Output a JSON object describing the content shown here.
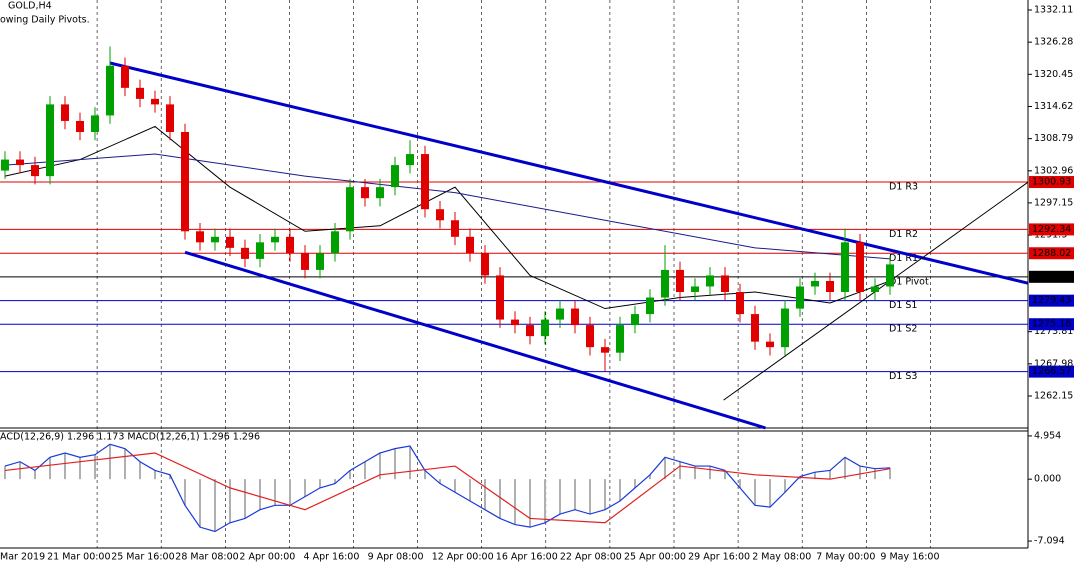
{
  "chart_data": {
    "type": "candlestick",
    "title": "GOLD,H4",
    "subtitle": "owing Daily Pivots.",
    "categories": [
      "Mar 2019",
      "21 Mar 00:00",
      "25 Mar 16:00",
      "28 Mar 08:00",
      "2 Apr 00:00",
      "4 Apr 16:00",
      "9 Apr 08:00",
      "12 Apr 00:00",
      "16 Apr 16:00",
      "22 Apr 08:00",
      "25 Apr 00:00",
      "29 Apr 16:00",
      "2 May 08:00",
      "7 May 00:00",
      "9 May 16:00"
    ],
    "ylim": [
      1256.35,
      1333.92
    ],
    "yticks": [
      1332.11,
      1326.28,
      1320.45,
      1314.62,
      1308.79,
      1302.96,
      1297.15,
      1291.3,
      1273.81,
      1267.98,
      1262.15
    ],
    "up_color": "#00a000",
    "down_color": "#e00000",
    "ohlc": [
      [
        1303,
        1306.5,
        1301.5,
        1305
      ],
      [
        1305,
        1306.5,
        1302.5,
        1304
      ],
      [
        1304,
        1305.5,
        1300.5,
        1302
      ],
      [
        1302,
        1316.5,
        1300.5,
        1315
      ],
      [
        1315,
        1316.5,
        1310.5,
        1312
      ],
      [
        1312,
        1313.5,
        1308.5,
        1310
      ],
      [
        1310,
        1314.5,
        1308.5,
        1313
      ],
      [
        1313,
        1325.5,
        1311.5,
        1322
      ],
      [
        1322,
        1323.5,
        1316.5,
        1318
      ],
      [
        1318,
        1319.5,
        1314.5,
        1316
      ],
      [
        1316,
        1317.5,
        1313.5,
        1315
      ],
      [
        1315,
        1316.5,
        1308.5,
        1310
      ],
      [
        1310,
        1311.5,
        1290.5,
        1292
      ],
      [
        1292,
        1293.5,
        1288.5,
        1290
      ],
      [
        1290,
        1292.5,
        1288.5,
        1291
      ],
      [
        1291,
        1292.5,
        1287.5,
        1289
      ],
      [
        1289,
        1290.5,
        1285.5,
        1287
      ],
      [
        1287,
        1291.5,
        1285.5,
        1290
      ],
      [
        1290,
        1292.5,
        1288.5,
        1291
      ],
      [
        1291,
        1292.5,
        1286.5,
        1288
      ],
      [
        1288,
        1289.5,
        1283.5,
        1285
      ],
      [
        1285,
        1289.5,
        1283.5,
        1288
      ],
      [
        1288,
        1293.5,
        1286.5,
        1292
      ],
      [
        1292,
        1301.5,
        1290.5,
        1300
      ],
      [
        1300,
        1301.5,
        1296.5,
        1298
      ],
      [
        1298,
        1301.5,
        1296.5,
        1300
      ],
      [
        1300,
        1305.5,
        1298.5,
        1304
      ],
      [
        1304,
        1308.5,
        1302.5,
        1306
      ],
      [
        1306,
        1307.5,
        1294.5,
        1296
      ],
      [
        1296,
        1297.5,
        1292.5,
        1294
      ],
      [
        1294,
        1295.5,
        1289.5,
        1291
      ],
      [
        1291,
        1292.5,
        1286.5,
        1288
      ],
      [
        1288,
        1289.5,
        1282.5,
        1284
      ],
      [
        1284,
        1285.5,
        1274.5,
        1276
      ],
      [
        1276,
        1277.5,
        1273.5,
        1275
      ],
      [
        1275,
        1276.5,
        1271.5,
        1273
      ],
      [
        1273,
        1277.5,
        1271.5,
        1276
      ],
      [
        1276,
        1279.5,
        1274.5,
        1278
      ],
      [
        1278,
        1279.5,
        1273.5,
        1275
      ],
      [
        1275,
        1276.5,
        1269.5,
        1271
      ],
      [
        1271,
        1272.5,
        1266.5,
        1270
      ],
      [
        1270,
        1276.5,
        1268.5,
        1275
      ],
      [
        1275,
        1278.5,
        1273.5,
        1277
      ],
      [
        1277,
        1281.5,
        1275.5,
        1280
      ],
      [
        1280,
        1289.5,
        1278.5,
        1285
      ],
      [
        1285,
        1286.5,
        1279.5,
        1281
      ],
      [
        1281,
        1283.5,
        1279.5,
        1282
      ],
      [
        1282,
        1285.5,
        1280.5,
        1284
      ],
      [
        1284,
        1285.5,
        1279.5,
        1281
      ],
      [
        1281,
        1282.5,
        1275.5,
        1277
      ],
      [
        1277,
        1278.5,
        1270.5,
        1272
      ],
      [
        1272,
        1273.5,
        1269.5,
        1271
      ],
      [
        1271,
        1279.5,
        1269.5,
        1278
      ],
      [
        1278,
        1283.5,
        1276.5,
        1282
      ],
      [
        1282,
        1284.5,
        1280.5,
        1283
      ],
      [
        1283,
        1284.5,
        1279.5,
        1281
      ],
      [
        1281,
        1292.5,
        1279.5,
        1290
      ],
      [
        1290,
        1291.5,
        1279.5,
        1281
      ],
      [
        1281,
        1283.5,
        1279.5,
        1282
      ],
      [
        1282,
        1287.5,
        1280.5,
        1286
      ]
    ],
    "moving_averages": [
      {
        "color": "#000000",
        "x": [
          0,
          5,
          10,
          15,
          20,
          25,
          30,
          35,
          40,
          45,
          50,
          55,
          59
        ],
        "values": [
          1302,
          1305,
          1311,
          1300,
          1292,
          1293,
          1300,
          1284,
          1278,
          1280,
          1281,
          1279,
          1283
        ]
      },
      {
        "color": "#1a1a8c",
        "x": [
          0,
          10,
          20,
          30,
          40,
          50,
          59
        ],
        "values": [
          1304,
          1306,
          1302,
          1299,
          1294,
          1289,
          1287
        ]
      }
    ],
    "trendlines": [
      {
        "color": "#0000c8",
        "width": 3,
        "x": [
          7,
          68.2
        ],
        "values": [
          1322.5,
          1282.6
        ]
      },
      {
        "color": "#0000c8",
        "width": 3,
        "x": [
          12,
          50.7
        ],
        "values": [
          1288.2,
          1256.35
        ]
      },
      {
        "color": "#000000",
        "width": 1,
        "x": [
          47.9,
          68.2
        ],
        "values": [
          1261.4,
          1300.9
        ]
      }
    ],
    "pivots": [
      {
        "label": "D1 R3",
        "value": 1300.93,
        "color": "#e00000"
      },
      {
        "label": "D1 R2",
        "value": 1292.34,
        "color": "#e00000"
      },
      {
        "label": "D1 R1",
        "value": 1288.02,
        "color": "#e00000"
      },
      {
        "label": "D1 Pivot",
        "value": 1283.75,
        "color": "#000000"
      },
      {
        "label": "D1 S1",
        "value": 1279.43,
        "color": "#0000c8"
      },
      {
        "label": "D1 S2",
        "value": 1275.16,
        "color": "#0000c8"
      },
      {
        "label": "D1 S3",
        "value": 1266.57,
        "color": "#0000c8"
      }
    ],
    "macd": {
      "label": "ACD(12,26,9) 1.296 1.173 MACD(12,26,1) 1.296 1.296",
      "ylim": [
        -7.89,
        5.52
      ],
      "yticks": [
        4.954,
        {
          "value": 0,
          "label": "0.000"
        },
        -7.094
      ],
      "hist_color": "#b0b0b0",
      "line_color": "#1a3adb",
      "signal_color": "#e02020",
      "values": [
        1.5,
        2,
        1,
        2.5,
        3,
        2.5,
        2.8,
        4,
        3.5,
        2,
        1,
        0.5,
        -3,
        -5.5,
        -6,
        -5,
        -4.5,
        -3.5,
        -3,
        -3,
        -2,
        -1,
        -0.5,
        1,
        2,
        3,
        3.5,
        3.8,
        1,
        -0.5,
        -1.5,
        -2.5,
        -3.5,
        -4.5,
        -5.2,
        -5.5,
        -5,
        -4,
        -3.5,
        -4,
        -3.5,
        -2.5,
        -1,
        0.5,
        2.5,
        2,
        1.5,
        1.5,
        1,
        -1,
        -3,
        -3.2,
        -1.5,
        0.3,
        0.8,
        1,
        2.5,
        1.5,
        1.2,
        1.3
      ],
      "signal_x": [
        0,
        5,
        10,
        15,
        20,
        25,
        30,
        35,
        40,
        45,
        50,
        55,
        59
      ],
      "signal": [
        1,
        2,
        3,
        -1,
        -3.5,
        0.5,
        1.5,
        -4.5,
        -5,
        1.5,
        0.5,
        0,
        1.2
      ]
    }
  }
}
